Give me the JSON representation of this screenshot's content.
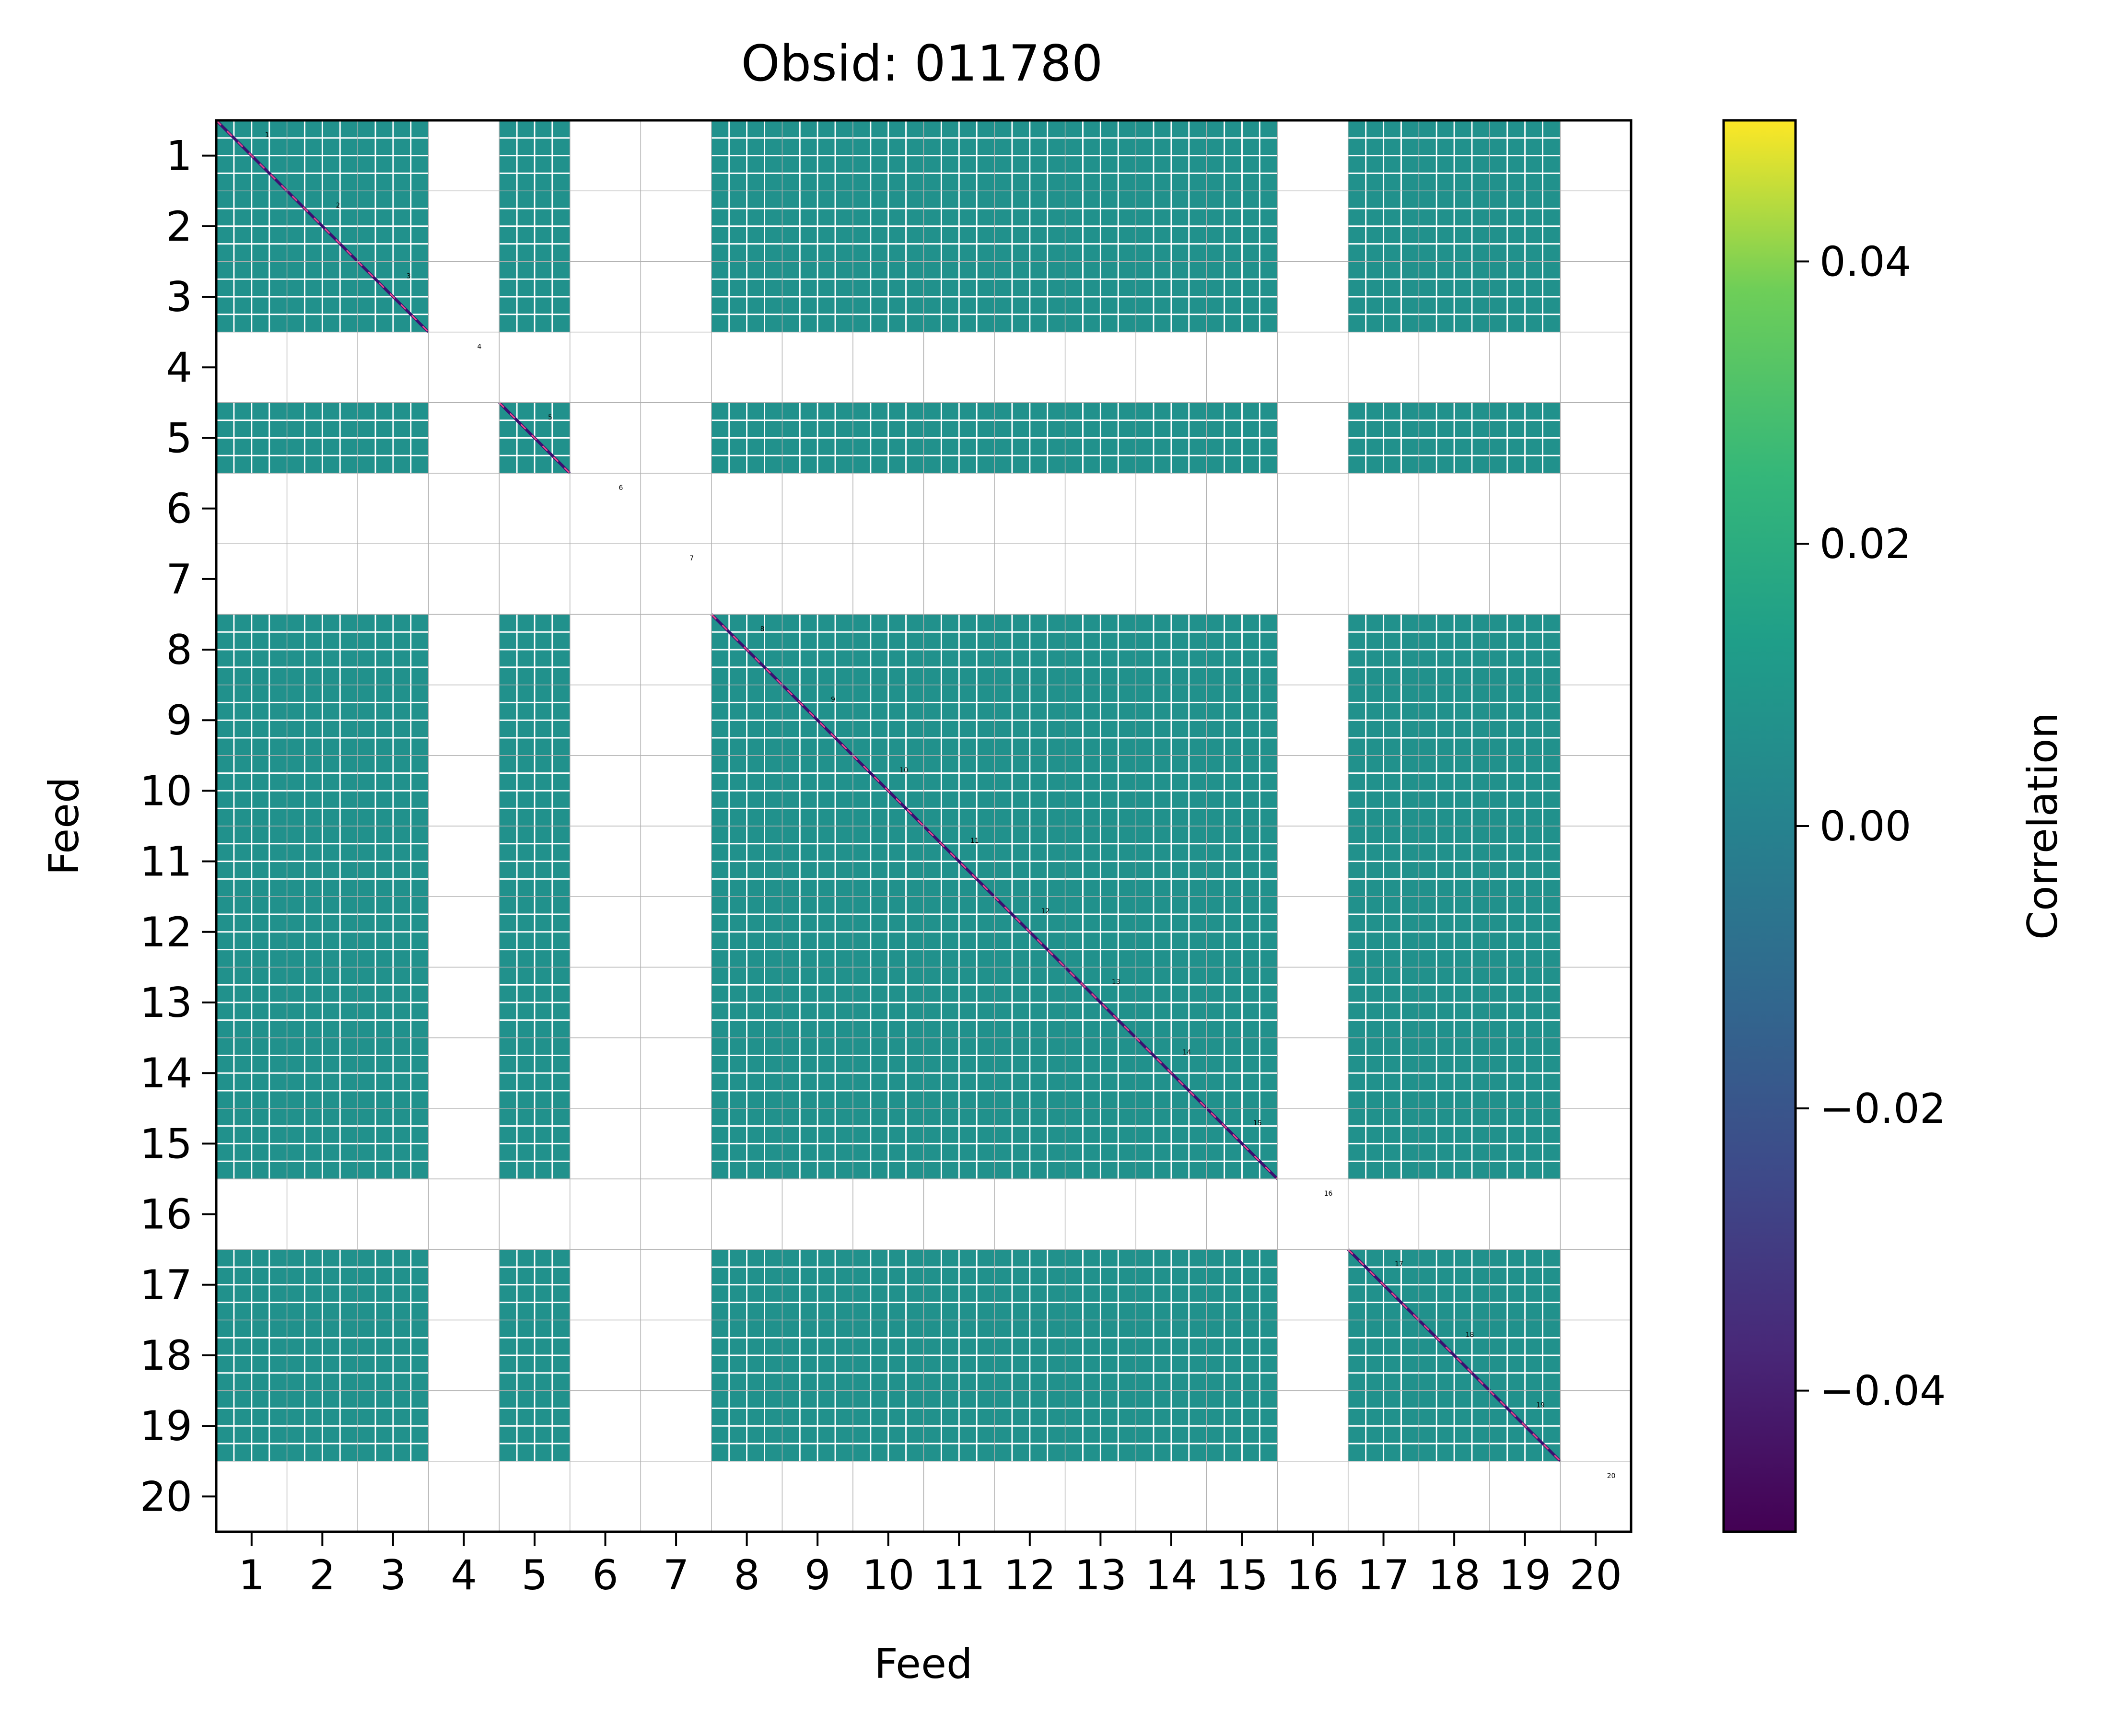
{
  "chart_data": {
    "type": "heatmap",
    "title": "Obsid: 011780",
    "xlabel": "Feed",
    "ylabel": "Feed",
    "x_tick_labels": [
      "1",
      "2",
      "3",
      "4",
      "5",
      "6",
      "7",
      "8",
      "9",
      "10",
      "11",
      "12",
      "13",
      "14",
      "15",
      "16",
      "17",
      "18",
      "19",
      "20"
    ],
    "y_tick_labels": [
      "1",
      "2",
      "3",
      "4",
      "5",
      "6",
      "7",
      "8",
      "9",
      "10",
      "11",
      "12",
      "13",
      "14",
      "15",
      "16",
      "17",
      "18",
      "19",
      "20"
    ],
    "feed_block_labels": [
      "1",
      "2",
      "3",
      "4",
      "5",
      "6",
      "7",
      "8",
      "9",
      "10",
      "11",
      "12",
      "13",
      "14",
      "15",
      "16",
      "17",
      "18",
      "19",
      "20"
    ],
    "active_feeds": [
      1,
      2,
      3,
      5,
      8,
      9,
      10,
      11,
      12,
      13,
      14,
      15,
      17,
      18,
      19
    ],
    "inactive_feeds": [
      4,
      6,
      7,
      16,
      20
    ],
    "fill_value": 0.0,
    "diagonal": "negative-correlation dashes along diagonal of each active feed block",
    "colorbar": {
      "label": "Correlation",
      "range": [
        -0.05,
        0.05
      ],
      "ticks": [
        -0.04,
        -0.02,
        0.0,
        0.02,
        0.04
      ],
      "tick_labels": [
        "−0.04",
        "−0.02",
        "0.00",
        "0.02",
        "0.04"
      ],
      "colormap": "viridis"
    },
    "grid": true
  },
  "colors": {
    "zero": "#21918c",
    "diag_neg": "#3b0f70",
    "diag_accent": "#e64d8b",
    "grid": "#b0b0b0",
    "viridis": [
      "#440154",
      "#3b528b",
      "#21918c",
      "#5ec962",
      "#fde725"
    ]
  }
}
